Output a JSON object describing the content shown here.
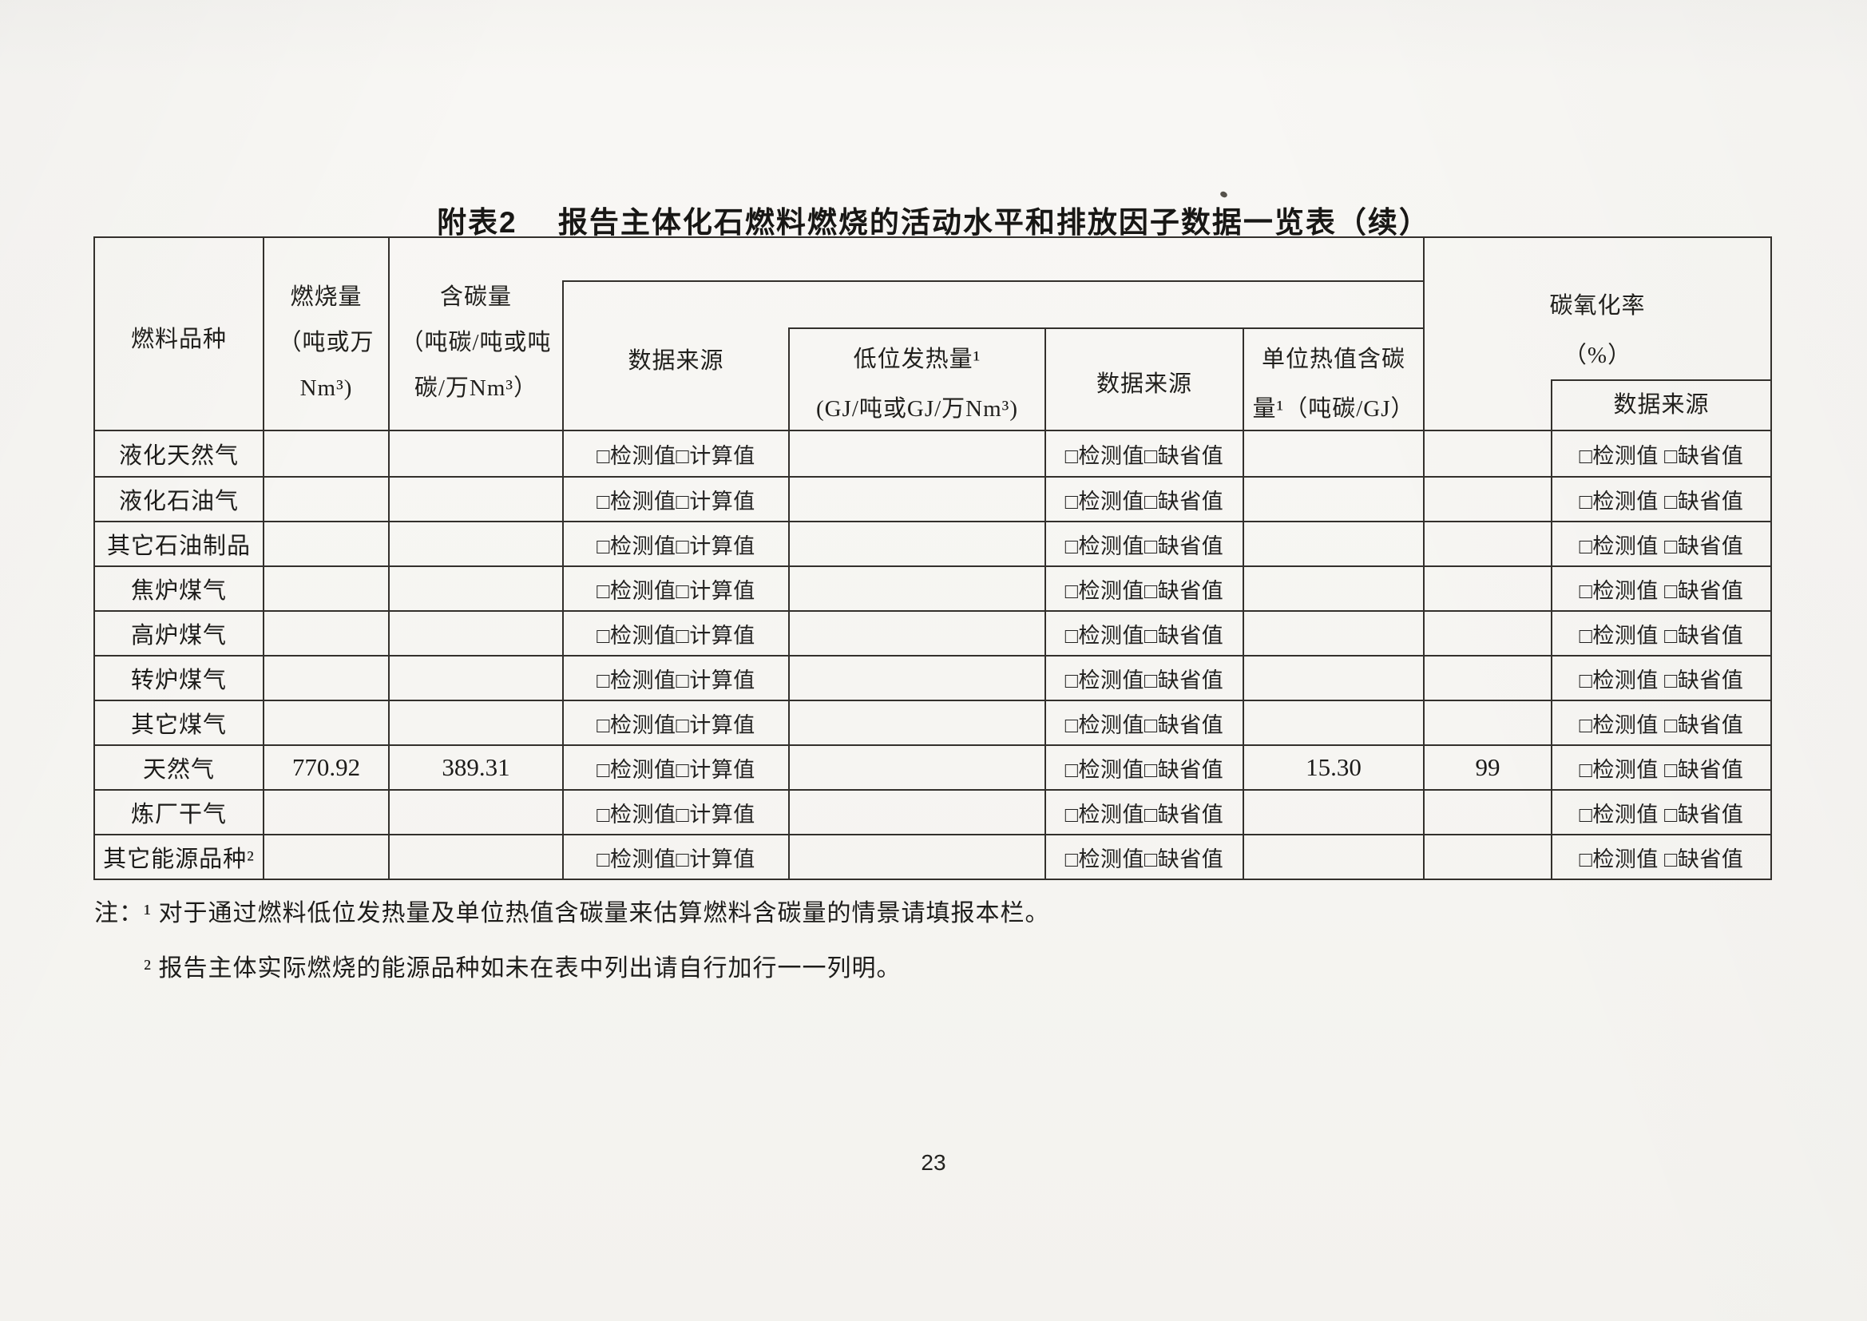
{
  "title": "附表2　 报告主体化石燃料燃烧的活动水平和排放因子数据一览表（续）",
  "page_number": "23",
  "table": {
    "headers": {
      "fuel_type": "燃料品种",
      "burn_amount": [
        "燃烧量",
        "（吨或万",
        "Nm³)"
      ],
      "carbon_content": [
        "含碳量",
        "（吨碳/吨或吨",
        "碳/万Nm³）"
      ],
      "data_source_1": "数据来源",
      "ncv": [
        "低位发热量¹",
        "(GJ/吨或GJ/万Nm³)"
      ],
      "data_source_2": "数据来源",
      "carbon_per_heat": [
        "单位热值含碳",
        "量¹（吨碳/GJ）"
      ],
      "oxidation_rate": [
        "碳氧化率",
        "（%）"
      ],
      "data_source_3": "数据来源"
    },
    "rows": [
      {
        "fuel": "液化天然气",
        "burn": "",
        "carbon": "",
        "src1": "□检测值□计算值",
        "ncv": "",
        "src2": "□检测值□缺省值",
        "cpu": "",
        "oxid": "",
        "src3": "□检测值 □缺省值"
      },
      {
        "fuel": "液化石油气",
        "burn": "",
        "carbon": "",
        "src1": "□检测值□计算值",
        "ncv": "",
        "src2": "□检测值□缺省值",
        "cpu": "",
        "oxid": "",
        "src3": "□检测值 □缺省值"
      },
      {
        "fuel": "其它石油制品",
        "burn": "",
        "carbon": "",
        "src1": "□检测值□计算值",
        "ncv": "",
        "src2": "□检测值□缺省值",
        "cpu": "",
        "oxid": "",
        "src3": "□检测值 □缺省值"
      },
      {
        "fuel": "焦炉煤气",
        "burn": "",
        "carbon": "",
        "src1": "□检测值□计算值",
        "ncv": "",
        "src2": "□检测值□缺省值",
        "cpu": "",
        "oxid": "",
        "src3": "□检测值 □缺省值"
      },
      {
        "fuel": "高炉煤气",
        "burn": "",
        "carbon": "",
        "src1": "□检测值□计算值",
        "ncv": "",
        "src2": "□检测值□缺省值",
        "cpu": "",
        "oxid": "",
        "src3": "□检测值 □缺省值"
      },
      {
        "fuel": "转炉煤气",
        "burn": "",
        "carbon": "",
        "src1": "□检测值□计算值",
        "ncv": "",
        "src2": "□检测值□缺省值",
        "cpu": "",
        "oxid": "",
        "src3": "□检测值 □缺省值"
      },
      {
        "fuel": "其它煤气",
        "burn": "",
        "carbon": "",
        "src1": "□检测值□计算值",
        "ncv": "",
        "src2": "□检测值□缺省值",
        "cpu": "",
        "oxid": "",
        "src3": "□检测值 □缺省值"
      },
      {
        "fuel": "天然气",
        "burn": "770.92",
        "carbon": "389.31",
        "src1": "□检测值□计算值",
        "ncv": "",
        "src2": "□检测值□缺省值",
        "cpu": "15.30",
        "oxid": "99",
        "src3": "□检测值 □缺省值"
      },
      {
        "fuel": "炼厂干气",
        "burn": "",
        "carbon": "",
        "src1": "□检测值□计算值",
        "ncv": "",
        "src2": "□检测值□缺省值",
        "cpu": "",
        "oxid": "",
        "src3": "□检测值 □缺省值"
      },
      {
        "fuel": "其它能源品种²",
        "burn": "",
        "carbon": "",
        "src1": "□检测值□计算值",
        "ncv": "",
        "src2": "□检测值□缺省值",
        "cpu": "",
        "oxid": "",
        "src3": "□检测值 □缺省值"
      }
    ]
  },
  "notes": {
    "note1": "注：¹ 对于通过燃料低位发热量及单位热值含碳量来估算燃料含碳量的情景请填报本栏。",
    "note2": "² 报告主体实际燃烧的能源品种如未在表中列出请自行加行一一列明。"
  },
  "colors": {
    "ink": "#1c1b19",
    "border": "#33302c",
    "paper": "#f6f5f2"
  }
}
